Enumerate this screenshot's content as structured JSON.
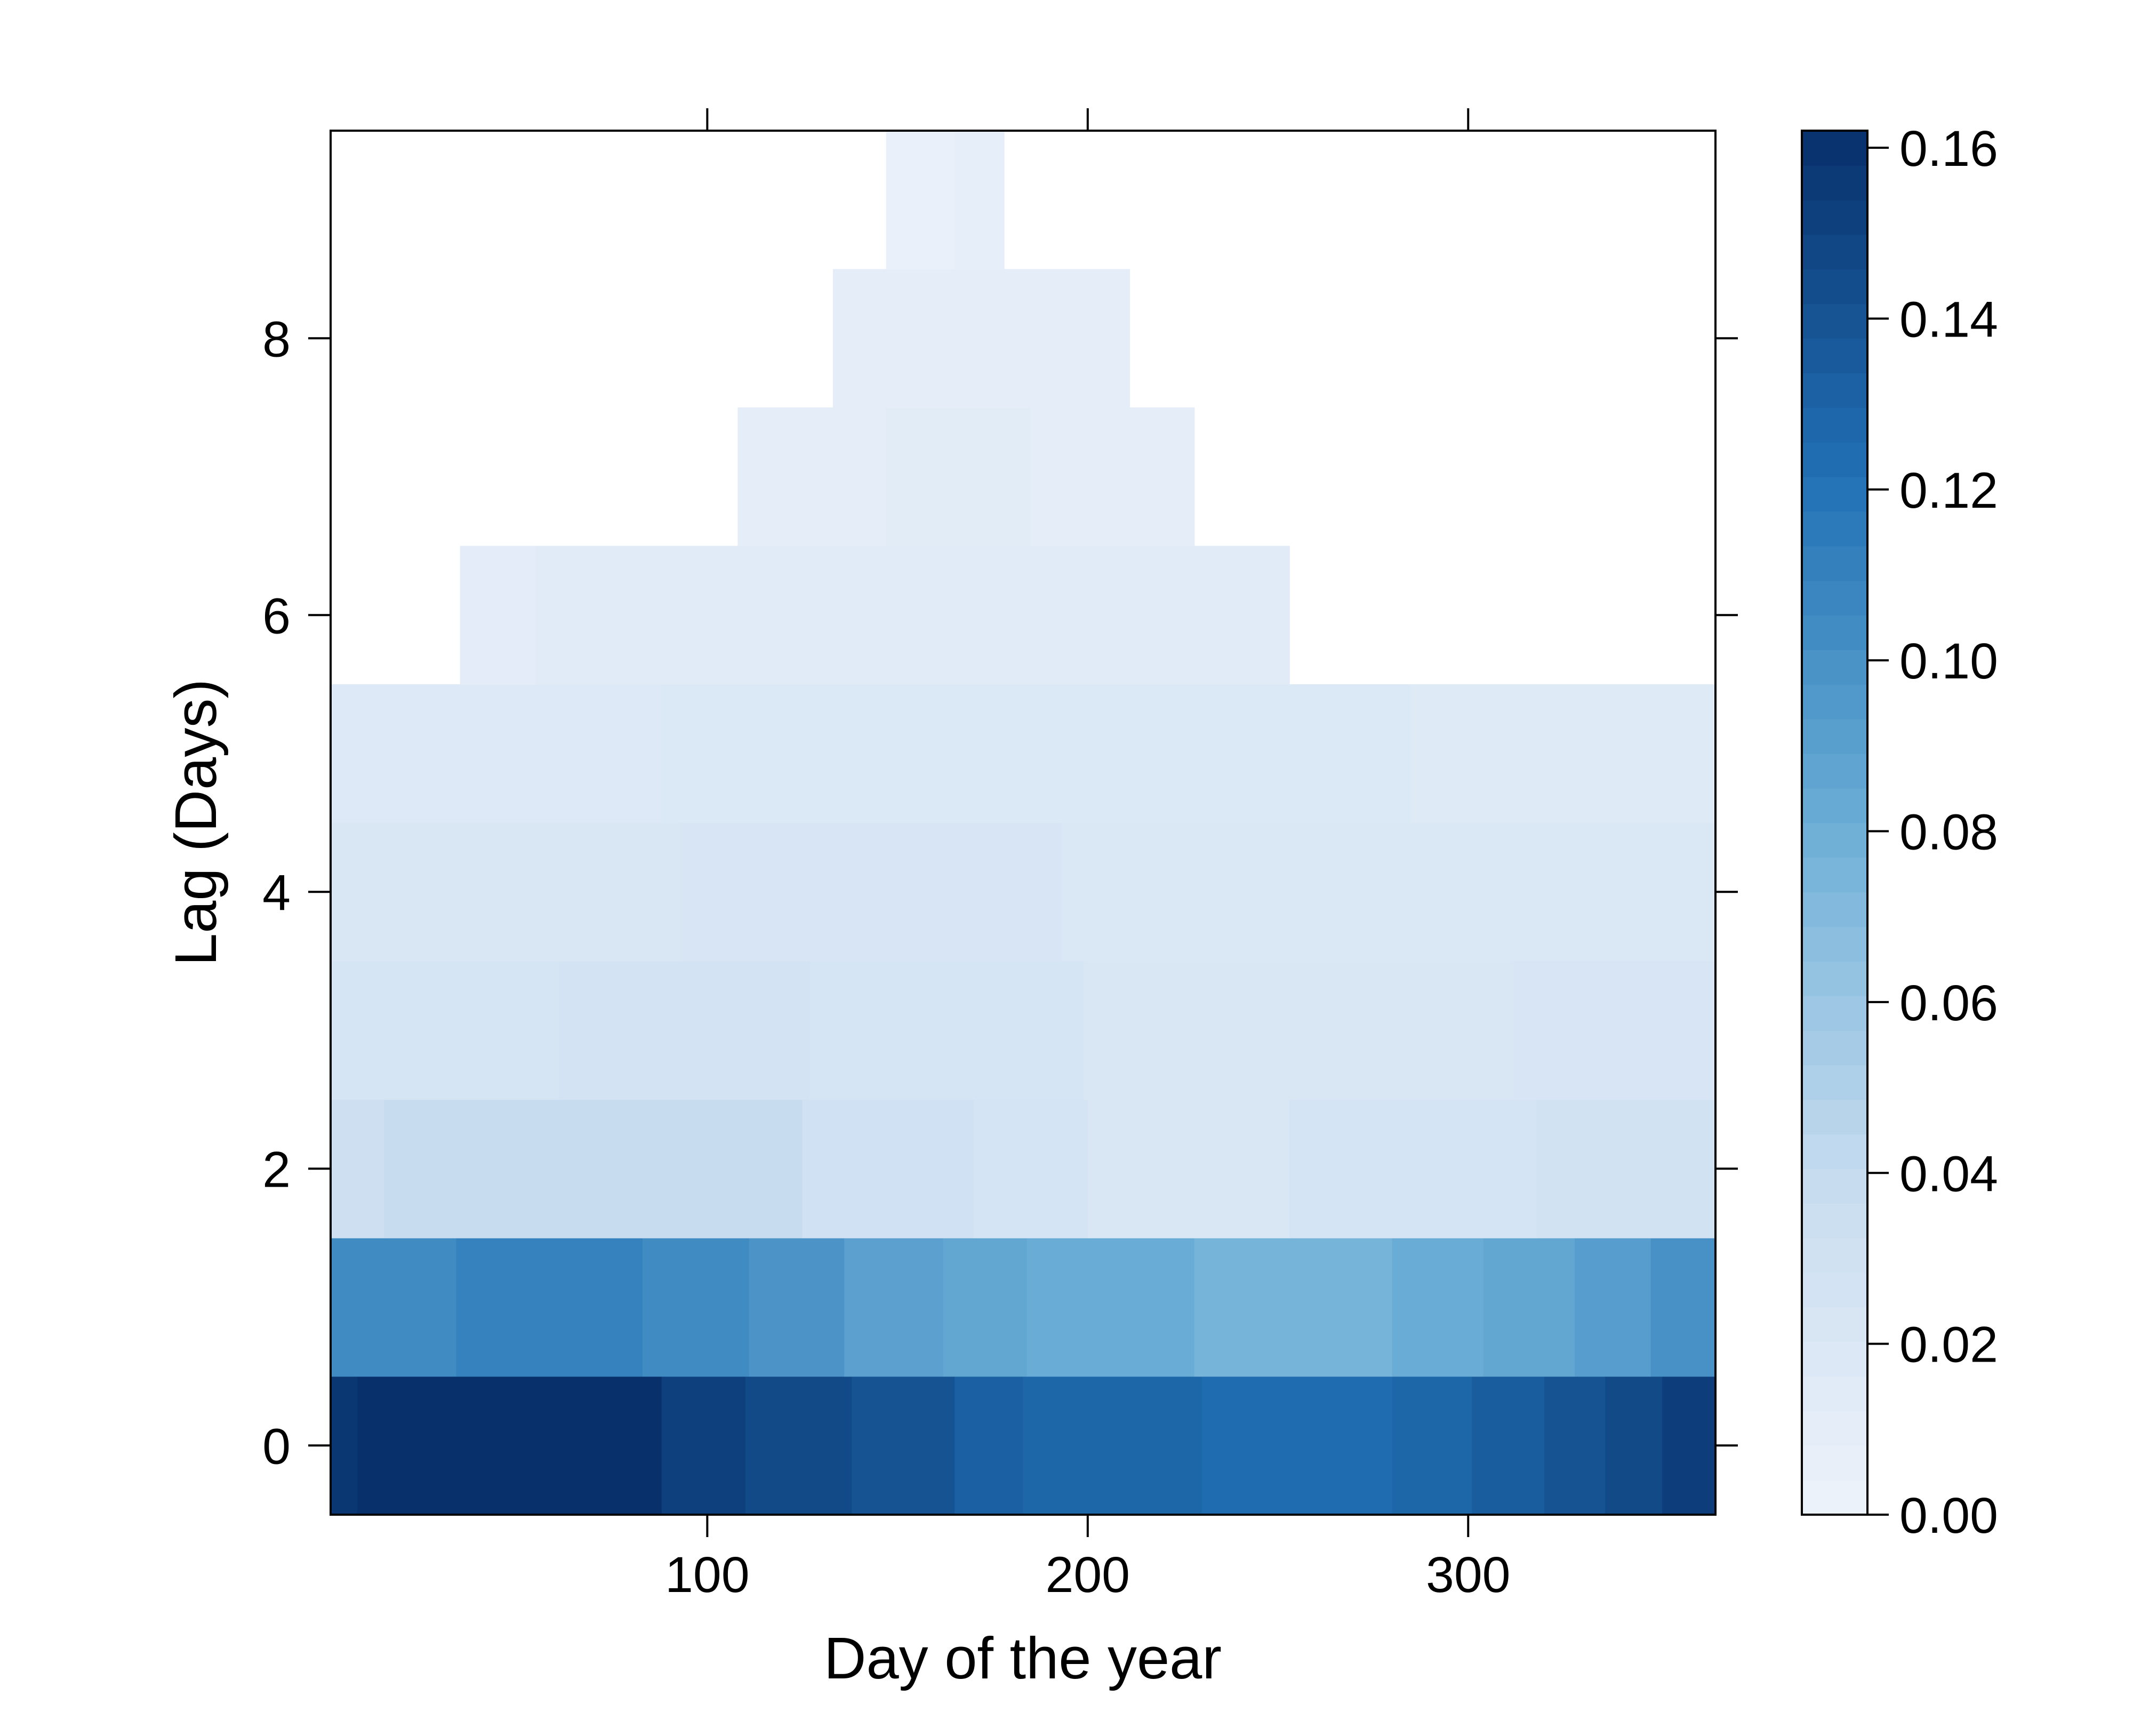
{
  "chart_data": {
    "type": "heatmap",
    "title": "",
    "xlabel": "Day of the year",
    "ylabel": "Lag (Days)",
    "xlim": [
      1,
      365
    ],
    "ylim": [
      -0.5,
      9.5
    ],
    "x_ticks": [
      100,
      200,
      300
    ],
    "x_tick_labels": [
      "100",
      "200",
      "300"
    ],
    "y_ticks": [
      0,
      2,
      4,
      6,
      8
    ],
    "y_tick_labels": [
      "0",
      "2",
      "4",
      "6",
      "8"
    ],
    "grid": false,
    "legend": "right",
    "colorbar": {
      "min": 0.0,
      "max": 0.162,
      "ticks": [
        0.0,
        0.02,
        0.04,
        0.06,
        0.08,
        0.1,
        0.12,
        0.14,
        0.16
      ],
      "tick_labels": [
        "0.00",
        "0.02",
        "0.04",
        "0.06",
        "0.08",
        "0.10",
        "0.12",
        "0.14",
        "0.16"
      ],
      "colors": [
        "#eef3fb",
        "#c6dbef",
        "#6baed6",
        "#2171b5",
        "#08306b"
      ]
    },
    "cells": [
      {
        "lag": 0,
        "segments": [
          [
            1,
            8,
            0.158
          ],
          [
            8,
            88,
            0.162
          ],
          [
            88,
            110,
            0.152
          ],
          [
            110,
            138,
            0.146
          ],
          [
            138,
            165,
            0.14
          ],
          [
            165,
            183,
            0.132
          ],
          [
            183,
            230,
            0.128
          ],
          [
            230,
            280,
            0.124
          ],
          [
            280,
            301,
            0.128
          ],
          [
            301,
            320,
            0.134
          ],
          [
            320,
            336,
            0.14
          ],
          [
            336,
            351,
            0.146
          ],
          [
            351,
            365,
            0.154
          ]
        ]
      },
      {
        "lag": 1,
        "segments": [
          [
            1,
            34,
            0.104
          ],
          [
            34,
            83,
            0.11
          ],
          [
            83,
            111,
            0.104
          ],
          [
            111,
            136,
            0.098
          ],
          [
            136,
            162,
            0.09
          ],
          [
            162,
            184,
            0.086
          ],
          [
            184,
            228,
            0.082
          ],
          [
            228,
            280,
            0.076
          ],
          [
            280,
            304,
            0.082
          ],
          [
            304,
            328,
            0.086
          ],
          [
            328,
            348,
            0.092
          ],
          [
            348,
            365,
            0.1
          ]
        ]
      },
      {
        "lag": 2,
        "segments": [
          [
            1,
            15,
            0.033
          ],
          [
            15,
            125,
            0.038
          ],
          [
            125,
            170,
            0.031
          ],
          [
            170,
            200,
            0.025
          ],
          [
            200,
            253,
            0.021
          ],
          [
            253,
            318,
            0.025
          ],
          [
            318,
            365,
            0.029
          ]
        ]
      },
      {
        "lag": 3,
        "segments": [
          [
            1,
            61,
            0.024
          ],
          [
            61,
            127,
            0.027
          ],
          [
            127,
            199,
            0.024
          ],
          [
            199,
            312,
            0.021
          ],
          [
            312,
            365,
            0.023
          ]
        ]
      },
      {
        "lag": 4,
        "segments": [
          [
            1,
            93,
            0.021
          ],
          [
            93,
            193,
            0.023
          ],
          [
            193,
            365,
            0.02
          ]
        ]
      },
      {
        "lag": 5,
        "segments": [
          [
            1,
            88,
            0.017
          ],
          [
            88,
            285,
            0.019
          ],
          [
            285,
            365,
            0.015
          ]
        ]
      },
      {
        "lag": 6,
        "segments": [
          [
            35,
            55,
            0.011
          ],
          [
            55,
            253,
            0.014
          ]
        ]
      },
      {
        "lag": 7,
        "segments": [
          [
            108,
            147,
            0.01
          ],
          [
            147,
            185,
            0.012
          ],
          [
            185,
            228,
            0.01
          ]
        ]
      },
      {
        "lag": 8,
        "segments": [
          [
            133,
            211,
            0.009
          ]
        ]
      },
      {
        "lag": 9,
        "segments": [
          [
            147,
            165,
            0.005
          ],
          [
            165,
            178,
            0.008
          ]
        ]
      }
    ]
  }
}
